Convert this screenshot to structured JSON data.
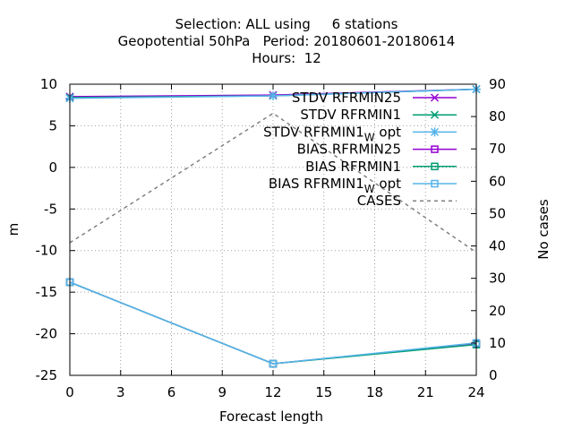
{
  "title_lines": [
    "Selection: ALL using     6 stations",
    "Geopotential 50hPa   Period: 20180601-20180614",
    "Hours:  12"
  ],
  "chart_data": {
    "type": "line",
    "xlabel": "Forecast length",
    "ylabel": "m",
    "y2label": "No cases",
    "x_ticks": [
      0,
      3,
      6,
      9,
      12,
      15,
      18,
      21,
      24
    ],
    "y_ticks": [
      10,
      5,
      0,
      -5,
      -10,
      -15,
      -20,
      -25
    ],
    "y2_ticks": [
      90,
      80,
      70,
      60,
      50,
      40,
      30,
      20,
      10,
      0
    ],
    "xlim": [
      0,
      24
    ],
    "ylim": [
      -25,
      10
    ],
    "y2lim": [
      0,
      90
    ],
    "grid": true,
    "legend_position": "top-right",
    "x": [
      0,
      12,
      24
    ],
    "series": [
      {
        "name": "STDV RFRMIN25",
        "values": [
          8.5,
          8.7,
          9.4
        ],
        "color": "#9400d3",
        "marker": "x",
        "axis": "left"
      },
      {
        "name": "STDV RFRMIN1",
        "values": [
          8.4,
          8.6,
          9.4
        ],
        "color": "#009e73",
        "marker": "x",
        "axis": "left"
      },
      {
        "name": "STDV RFRMIN1_W_opt",
        "values": [
          8.3,
          8.6,
          9.4
        ],
        "color": "#56b4e9",
        "marker": "star",
        "axis": "left"
      },
      {
        "name": "BIAS RFRMIN25",
        "values": [
          -13.8,
          -23.6,
          -21.2
        ],
        "color": "#9400d3",
        "marker": "square",
        "axis": "left"
      },
      {
        "name": "BIAS RFRMIN1",
        "values": [
          -13.8,
          -23.6,
          -21.3
        ],
        "color": "#009e73",
        "marker": "square",
        "axis": "left"
      },
      {
        "name": "BIAS RFRMIN1_W_opt",
        "values": [
          -13.8,
          -23.6,
          -21.1
        ],
        "color": "#56b4e9",
        "marker": "square",
        "axis": "left"
      },
      {
        "name": "CASES",
        "values": [
          41,
          81,
          38
        ],
        "color": "#808080",
        "marker": "none",
        "dashed": true,
        "axis": "right"
      }
    ],
    "legend_entries": [
      {
        "label": "STDV RFRMIN25",
        "sub": ""
      },
      {
        "label": "STDV RFRMIN1",
        "sub": ""
      },
      {
        "label": "STDV RFRMIN1",
        "sub": "W",
        "suffix": " opt"
      },
      {
        "label": "BIAS RFRMIN25",
        "sub": ""
      },
      {
        "label": "BIAS RFRMIN1",
        "sub": ""
      },
      {
        "label": "BIAS RFRMIN1",
        "sub": "W",
        "suffix": " opt"
      },
      {
        "label": "CASES",
        "sub": ""
      }
    ]
  }
}
